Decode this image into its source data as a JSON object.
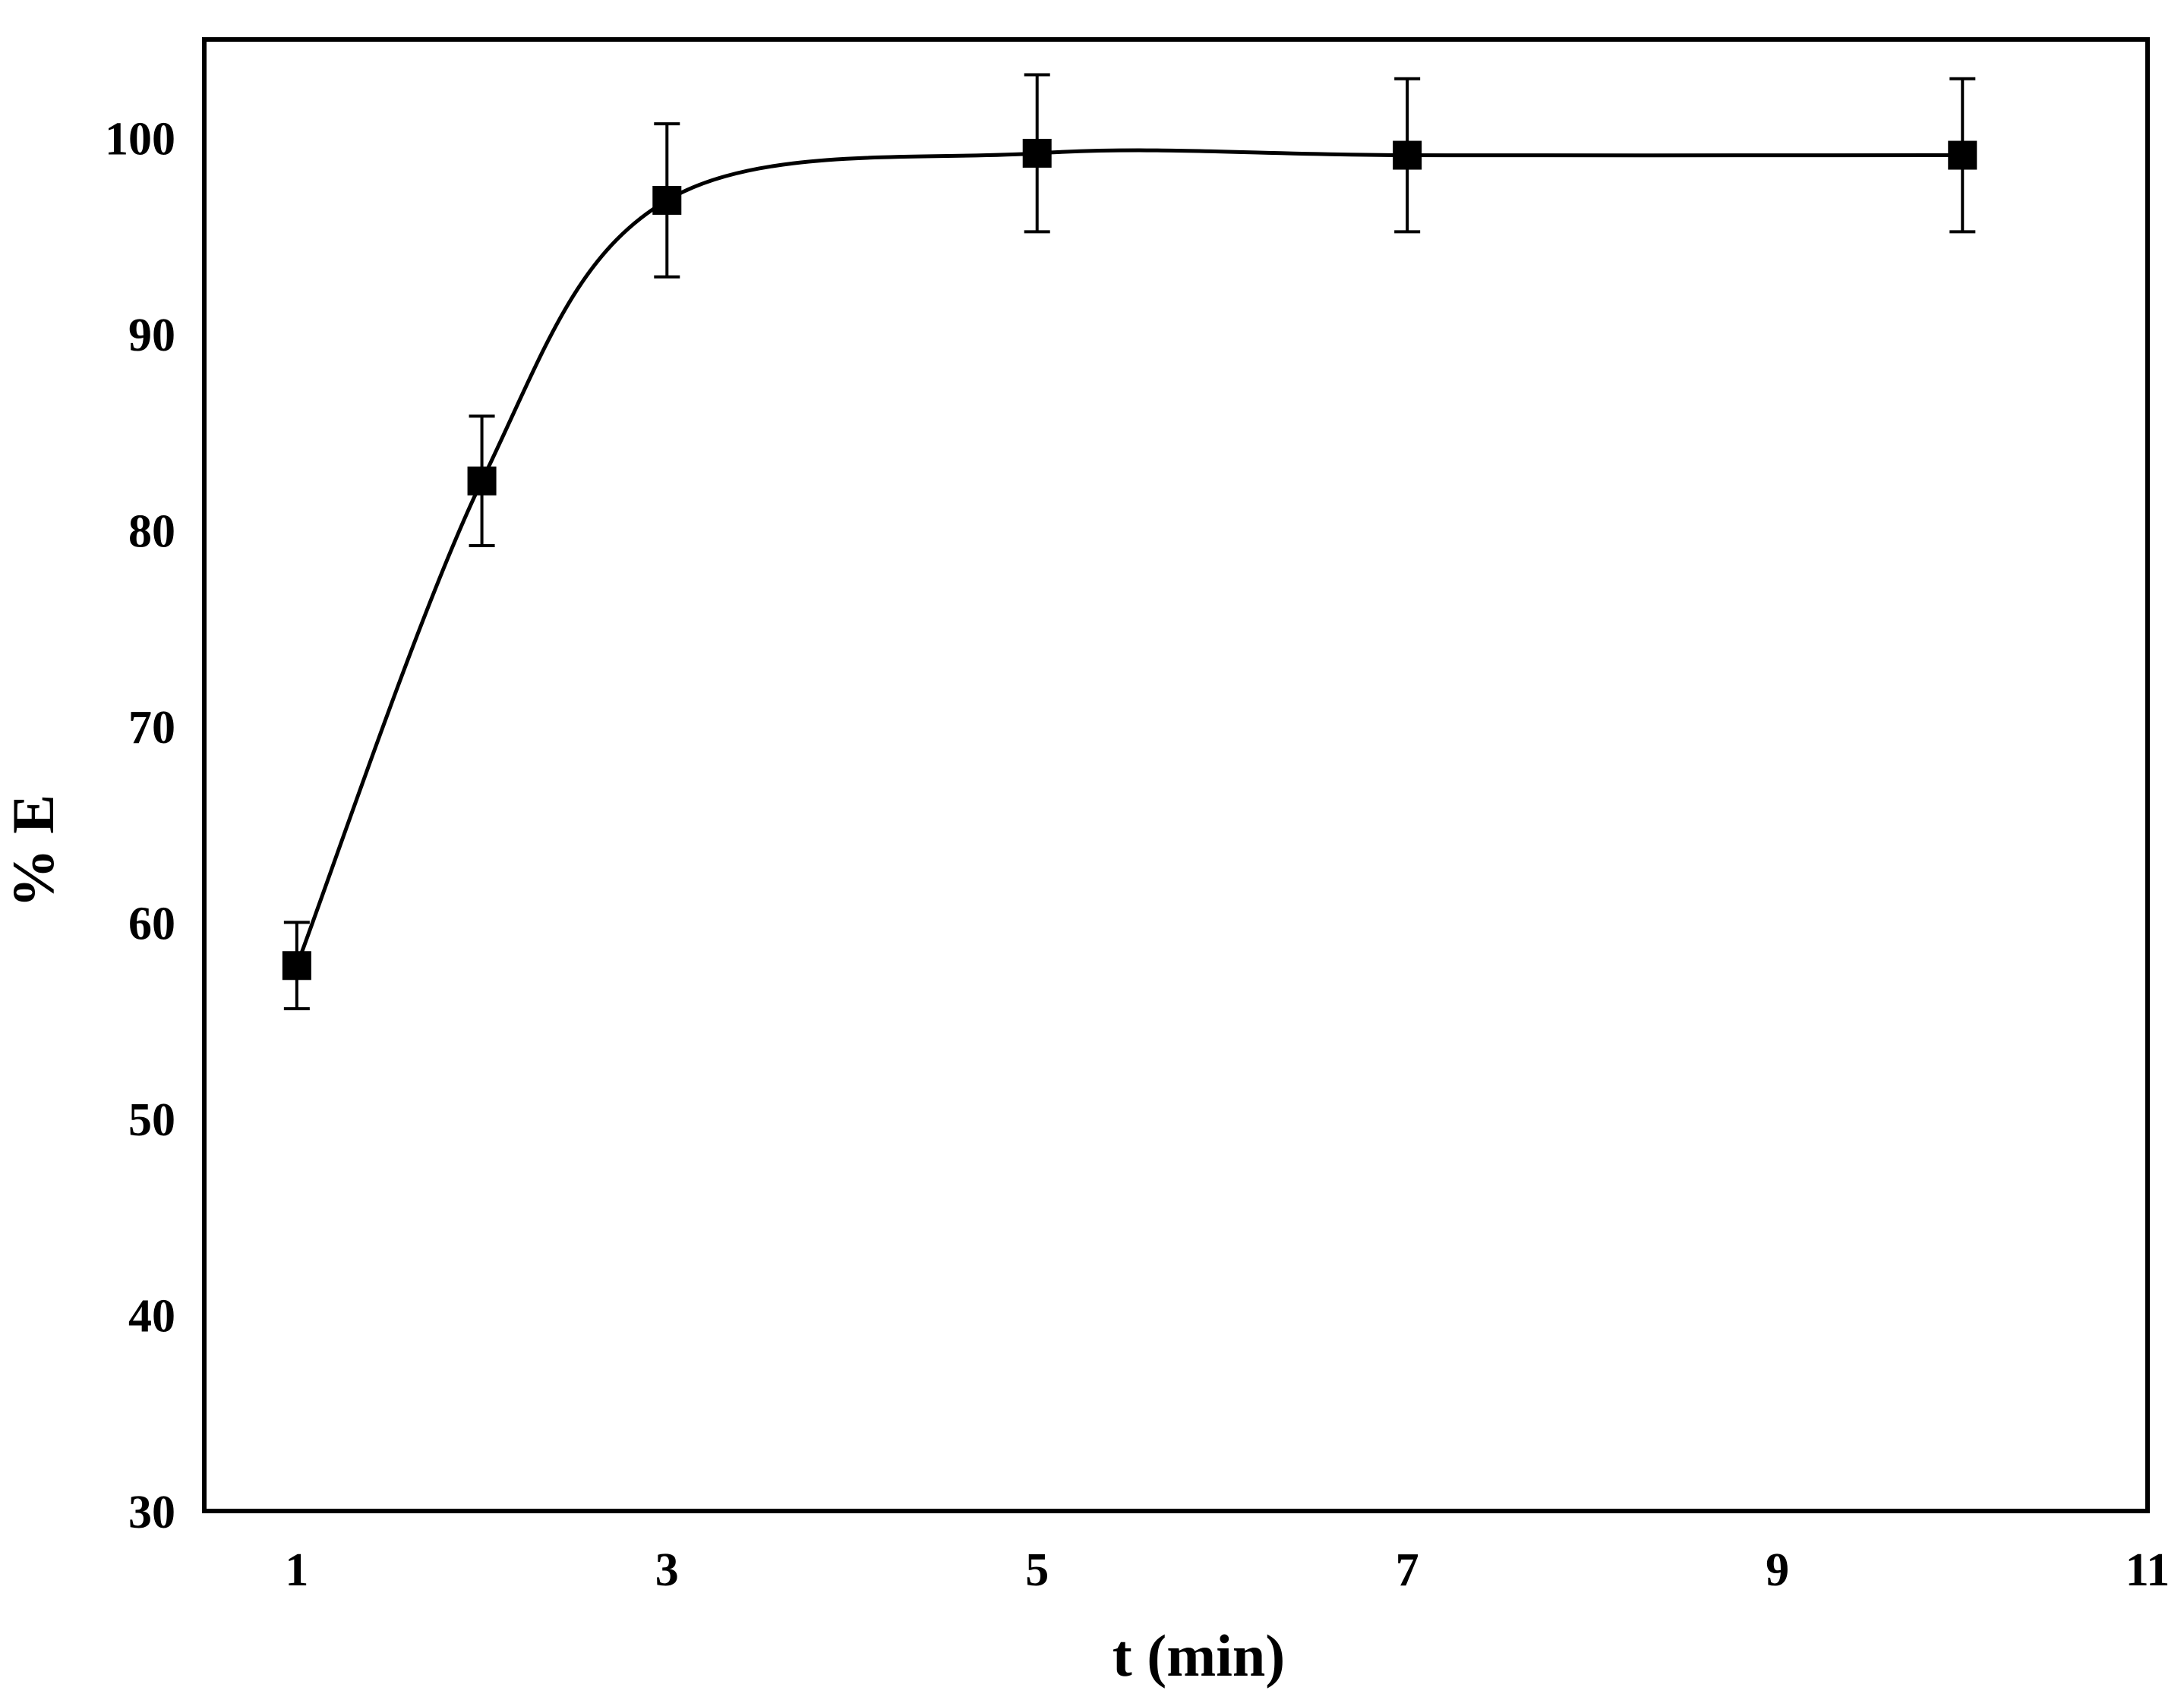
{
  "colors": {
    "background": "#ffffff",
    "axis": "#000000",
    "line": "#000000",
    "marker": "#000000"
  },
  "chart_data": {
    "type": "scatter",
    "title": "",
    "xlabel": "t (min)",
    "ylabel": "% E",
    "xlim": [
      0.5,
      11
    ],
    "ylim": [
      30,
      105
    ],
    "xticks": [
      1,
      3,
      5,
      7,
      9,
      11
    ],
    "yticks": [
      30,
      40,
      50,
      60,
      70,
      80,
      90,
      100
    ],
    "grid": false,
    "legend": "none",
    "marker": "square",
    "series": [
      {
        "x": [
          1,
          2,
          3,
          5,
          7,
          10
        ],
        "y": [
          57.8,
          82.5,
          96.8,
          99.2,
          99.1,
          99.1
        ],
        "error_y": [
          2.2,
          3.3,
          3.9,
          4.0,
          3.9,
          3.9
        ],
        "fit_line": "smooth"
      }
    ]
  }
}
